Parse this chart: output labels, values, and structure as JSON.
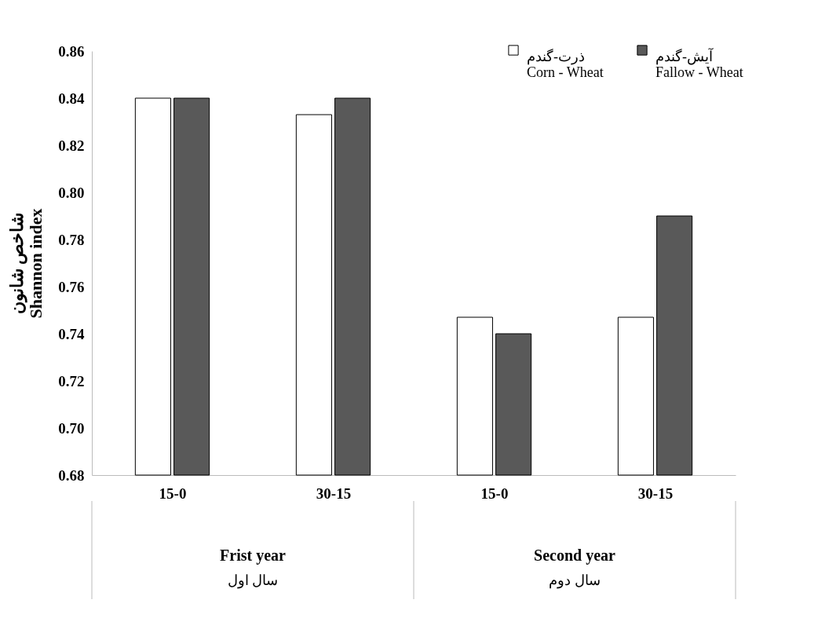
{
  "chart_data": {
    "type": "bar",
    "ylabel": "شاخص شانون\nShannon index",
    "categories": [
      "15-0",
      "30-15",
      "15-0",
      "30-15"
    ],
    "series": [
      {
        "name": "ذرت-گندم\nCorn - Wheat",
        "color": "#ffffff",
        "values": [
          0.84,
          0.833,
          0.747,
          0.747
        ]
      },
      {
        "name": "آیش-گندم\nFallow - Wheat",
        "color": "#595959",
        "values": [
          0.84,
          0.84,
          0.74,
          0.79
        ]
      }
    ],
    "annotations": [
      "Frist year",
      "سال اول",
      "Second year",
      "سال دوم"
    ],
    "ylim": [
      0.68,
      0.86
    ],
    "yticks": [
      {
        "value": 0.68,
        "label": "0.68"
      },
      {
        "value": 0.7,
        "label": "0.70"
      },
      {
        "value": 0.72,
        "label": "0.72"
      },
      {
        "value": 0.74,
        "label": "0.74"
      },
      {
        "value": 0.76,
        "label": "0.76"
      },
      {
        "value": 0.78,
        "label": "0.78"
      },
      {
        "value": 0.8,
        "label": "0.80"
      },
      {
        "value": 0.82,
        "label": "0.82"
      },
      {
        "value": 0.84,
        "label": "0.84"
      },
      {
        "value": 0.86,
        "label": "0.86"
      }
    ],
    "grid": false,
    "legend": "top right"
  }
}
